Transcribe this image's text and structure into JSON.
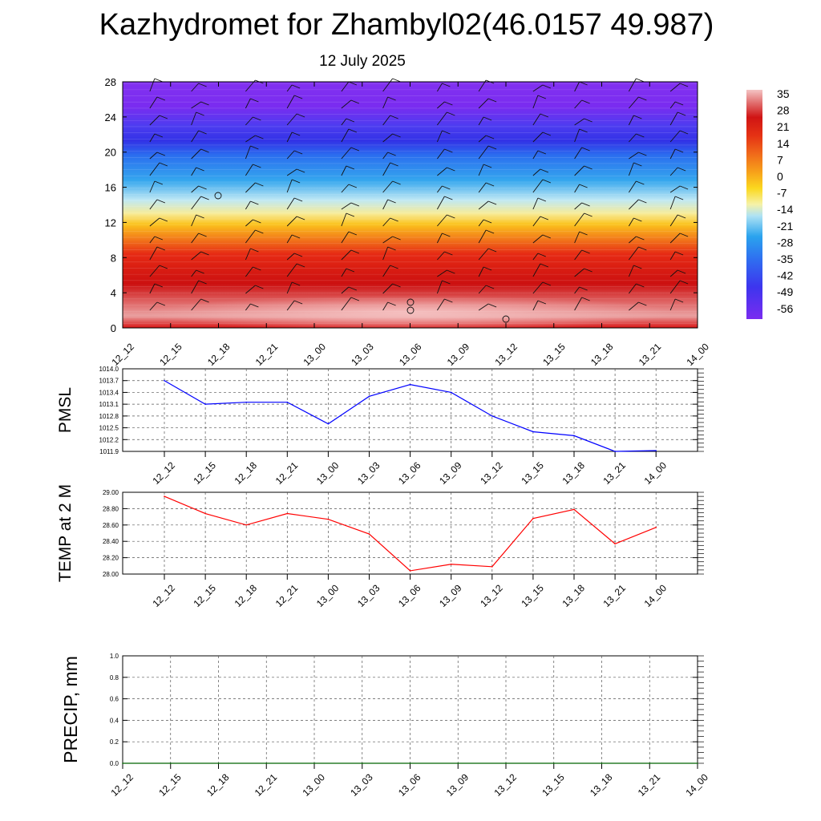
{
  "title": "Kazhydromet for Zhambyl02(46.0157 49.987)",
  "subtitle": "12 July 2025",
  "colors": {
    "pmsl_line": "#0000ff",
    "temp_line": "#ff0000",
    "precip_line": "#006400",
    "colormap": [
      "#7a2cf0",
      "#3d35ee",
      "#2f6ef0",
      "#2aa3ee",
      "#8fdcf4",
      "#f5f0a8",
      "#fbd81f",
      "#f7a21a",
      "#f06a1a",
      "#e23414",
      "#cc1010",
      "#df6060",
      "#f4b6b6"
    ]
  },
  "chart_data": [
    {
      "type": "heatmap",
      "title": "Kazhydromet for Zhambyl02(46.0157 49.987)",
      "subtitle": "12 July 2025",
      "x_tick_labels": [
        "12_12",
        "12_15",
        "12_18",
        "12_21",
        "13_00",
        "13_03",
        "13_06",
        "13_09",
        "13_12",
        "13_15",
        "13_18",
        "13_21",
        "14_00"
      ],
      "y_ticks": [
        0,
        4,
        8,
        12,
        16,
        20,
        24,
        28
      ],
      "ylim": [
        0,
        28
      ],
      "colorbar_labels": [
        "35",
        "28",
        "21",
        "14",
        "7",
        "0",
        "-7",
        "-14",
        "-21",
        "-28",
        "-35",
        "-42",
        "-49",
        "-56"
      ],
      "colorbar_range": [
        -60,
        38
      ],
      "overlay": "wind barbs"
    },
    {
      "type": "line",
      "ylabel": "PMSL",
      "x": [
        "12_12",
        "12_15",
        "12_18",
        "12_21",
        "13_00",
        "13_03",
        "13_06",
        "13_09",
        "13_12",
        "13_15",
        "13_18",
        "13_21",
        "14_00"
      ],
      "values": [
        1013.7,
        1013.1,
        1013.15,
        1013.15,
        1012.6,
        1013.3,
        1013.6,
        1013.4,
        1012.8,
        1012.4,
        1012.3,
        1011.9,
        1011.92
      ],
      "y_tick_labels": [
        "1014.0",
        "1013.7",
        "1013.4",
        "1013.1",
        "1012.8",
        "1012.5",
        "1012.2",
        "1011.9"
      ],
      "ylim": [
        1011.9,
        1014.0
      ],
      "grid": true
    },
    {
      "type": "line",
      "ylabel": "TEMP at 2 M",
      "x": [
        "12_12",
        "12_15",
        "12_18",
        "12_21",
        "13_00",
        "13_03",
        "13_06",
        "13_09",
        "13_12",
        "13_15",
        "13_18",
        "13_21",
        "14_00"
      ],
      "values": [
        28.95,
        28.74,
        28.6,
        28.74,
        28.67,
        28.49,
        28.04,
        28.12,
        28.09,
        28.68,
        28.79,
        28.37,
        28.57
      ],
      "y_tick_labels": [
        "29.00",
        "28.80",
        "28.60",
        "28.40",
        "28.20",
        "28.00"
      ],
      "ylim": [
        28.0,
        29.0
      ],
      "grid": true
    },
    {
      "type": "line",
      "ylabel": "PRECIP, mm",
      "x": [
        "12_12",
        "12_15",
        "12_18",
        "12_21",
        "13_00",
        "13_03",
        "13_06",
        "13_09",
        "13_12",
        "13_15",
        "13_18",
        "13_21",
        "14_00"
      ],
      "values": [
        0,
        0,
        0,
        0,
        0,
        0,
        0,
        0,
        0,
        0,
        0,
        0,
        0
      ],
      "y_tick_labels": [
        "1.0",
        "0.8",
        "0.6",
        "0.4",
        "0.2",
        "0.0"
      ],
      "ylim": [
        0,
        1.0
      ],
      "grid": true
    }
  ]
}
